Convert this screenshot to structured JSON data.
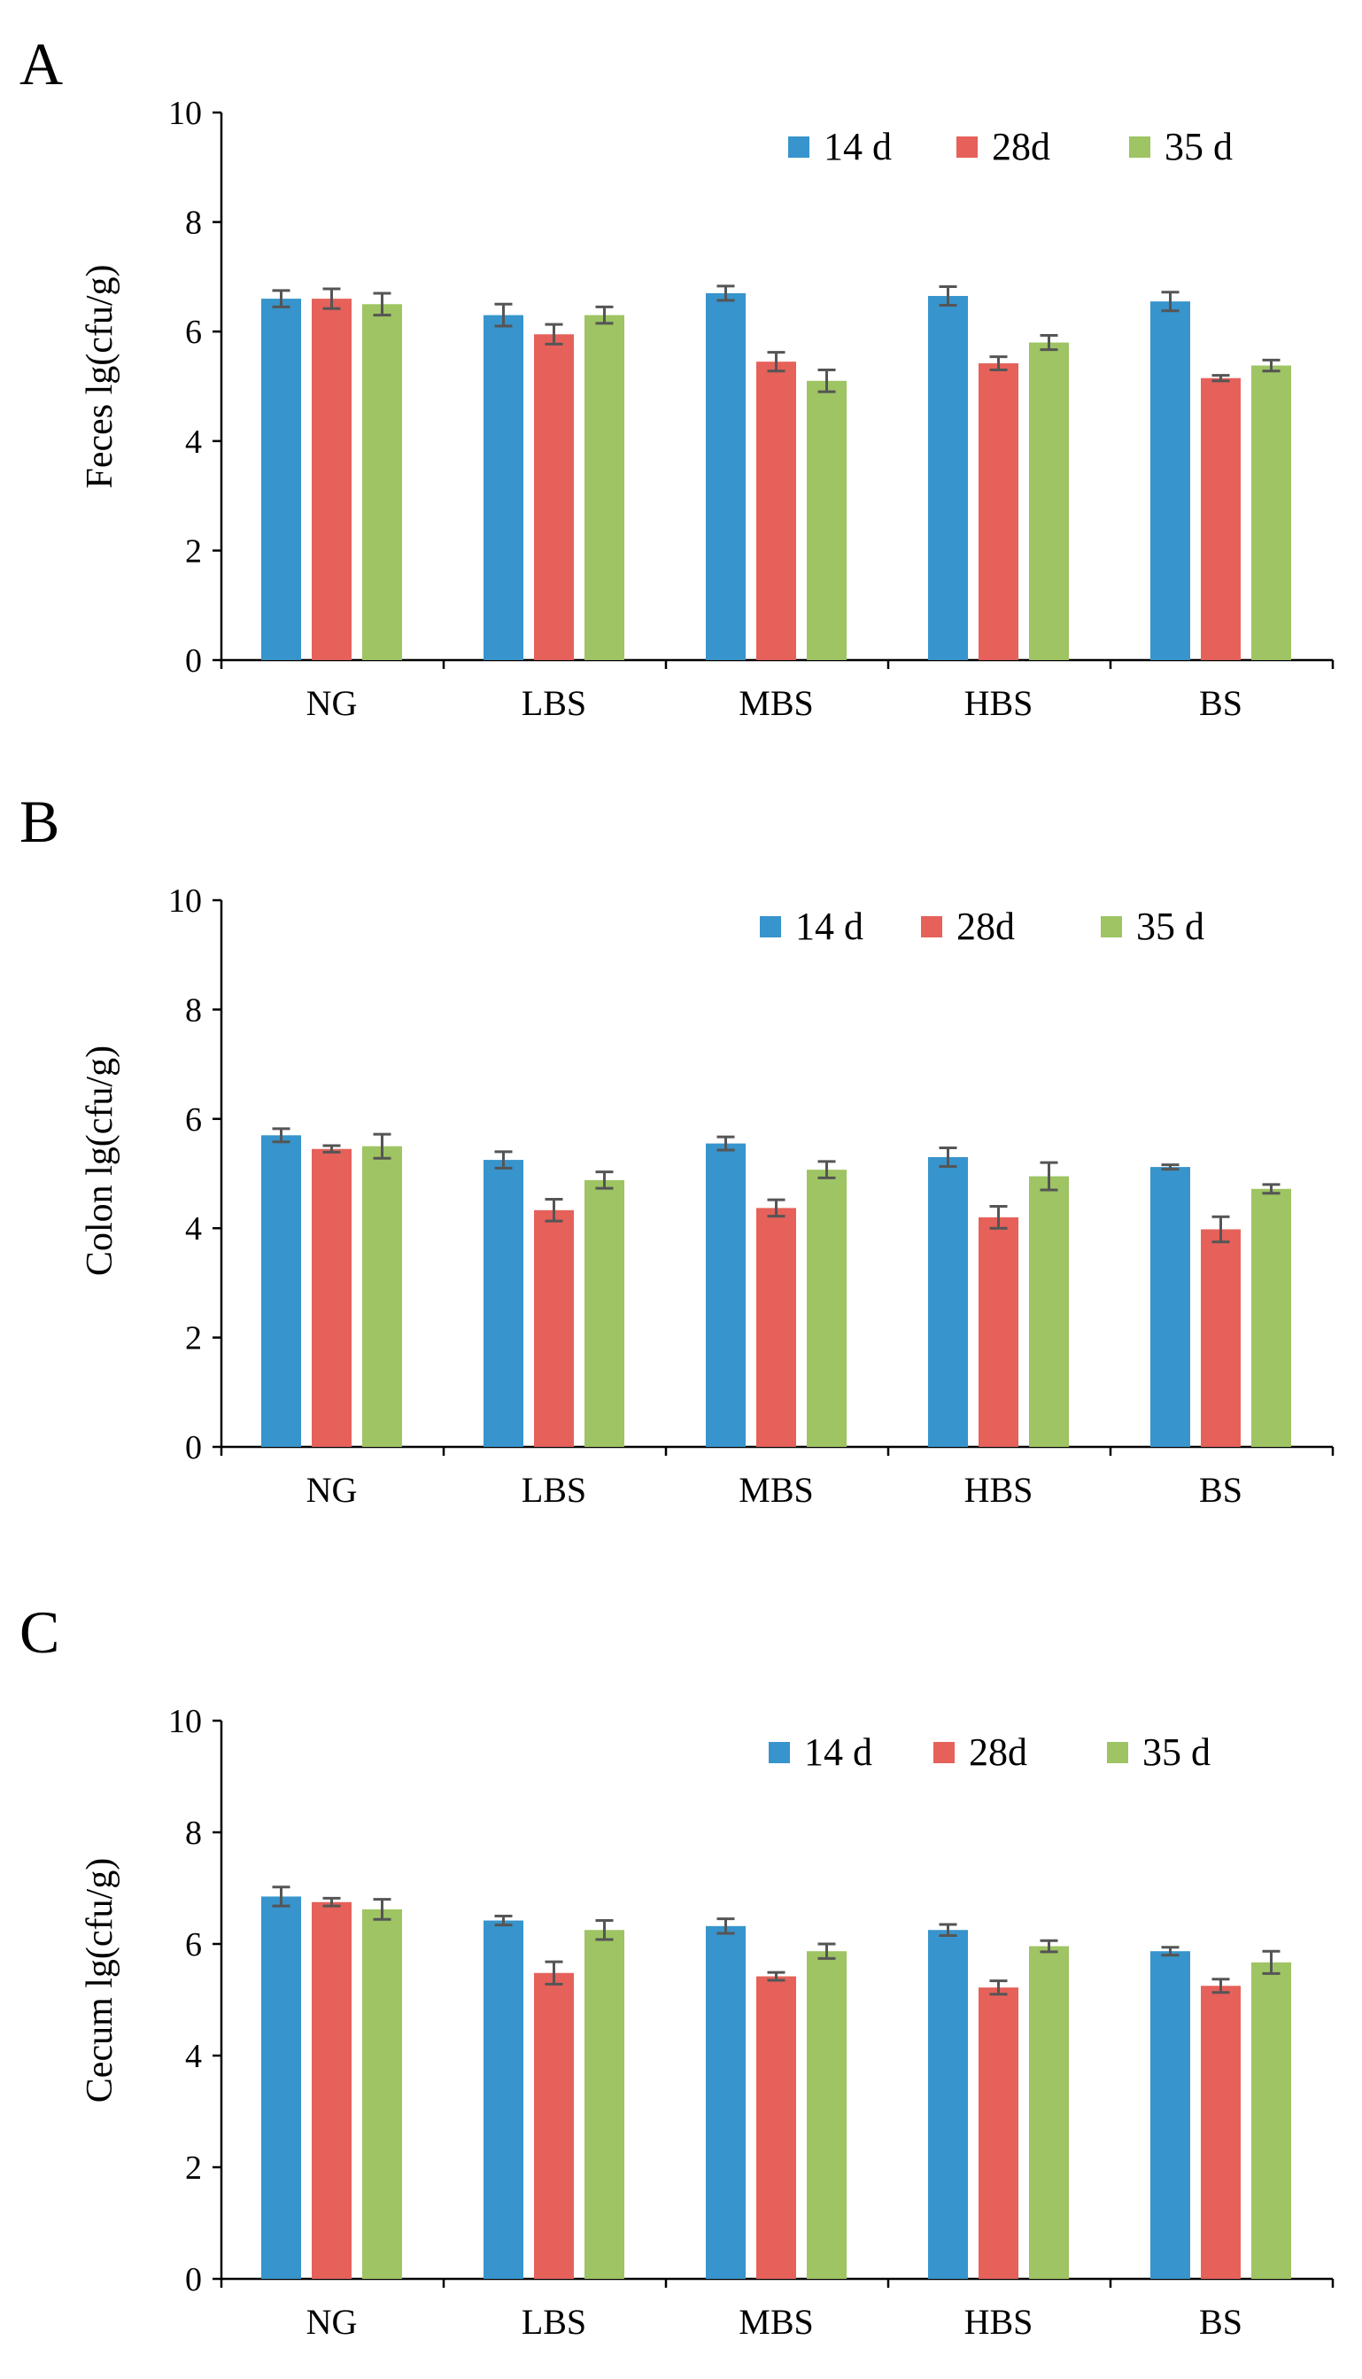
{
  "figure": {
    "panels": [
      "A",
      "B",
      "C"
    ]
  },
  "legend": [
    {
      "label": "14 d",
      "color": "#3794cc"
    },
    {
      "label": "28d",
      "color": "#e5615a"
    },
    {
      "label": "35 d",
      "color": "#9ec463"
    }
  ],
  "chart_data": [
    {
      "type": "bar",
      "panel": "A",
      "title": "",
      "xlabel": "",
      "ylabel": "Feces lg(cfu/g)",
      "ylim": [
        0,
        10
      ],
      "yticks": [
        "0",
        "2",
        "4",
        "6",
        "8",
        "10"
      ],
      "categories": [
        "NG",
        "LBS",
        "MBS",
        "HBS",
        "BS"
      ],
      "legend_position": "top-right",
      "series": [
        {
          "name": "14 d",
          "color": "#3794cc",
          "values": [
            6.6,
            6.3,
            6.7,
            6.65,
            6.55
          ],
          "errors": [
            0.15,
            0.2,
            0.13,
            0.17,
            0.17
          ]
        },
        {
          "name": "28d",
          "color": "#e5615a",
          "values": [
            6.6,
            5.95,
            5.45,
            5.42,
            5.15
          ],
          "errors": [
            0.18,
            0.18,
            0.17,
            0.12,
            0.05
          ]
        },
        {
          "name": "35 d",
          "color": "#9ec463",
          "values": [
            6.5,
            6.3,
            5.1,
            5.8,
            5.38
          ],
          "errors": [
            0.2,
            0.15,
            0.2,
            0.13,
            0.1
          ]
        }
      ]
    },
    {
      "type": "bar",
      "panel": "B",
      "title": "",
      "xlabel": "",
      "ylabel": "Colon lg(cfu/g)",
      "ylim": [
        0,
        10
      ],
      "yticks": [
        "0",
        "2",
        "4",
        "6",
        "8",
        "10"
      ],
      "categories": [
        "NG",
        "LBS",
        "MBS",
        "HBS",
        "BS"
      ],
      "legend_position": "top-right",
      "series": [
        {
          "name": "14 d",
          "color": "#3794cc",
          "values": [
            5.7,
            5.25,
            5.55,
            5.3,
            5.12
          ],
          "errors": [
            0.12,
            0.15,
            0.12,
            0.17,
            0.04
          ]
        },
        {
          "name": "28d",
          "color": "#e5615a",
          "values": [
            5.45,
            4.33,
            4.37,
            4.2,
            3.98
          ],
          "errors": [
            0.06,
            0.2,
            0.15,
            0.2,
            0.23
          ]
        },
        {
          "name": "35 d",
          "color": "#9ec463",
          "values": [
            5.5,
            4.88,
            5.07,
            4.95,
            4.72
          ],
          "errors": [
            0.22,
            0.15,
            0.15,
            0.25,
            0.08
          ]
        }
      ]
    },
    {
      "type": "bar",
      "panel": "C",
      "title": "",
      "xlabel": "",
      "ylabel": "Cecum lg(cfu/g)",
      "ylim": [
        0,
        10
      ],
      "yticks": [
        "0",
        "2",
        "4",
        "6",
        "8",
        "10"
      ],
      "categories": [
        "NG",
        "LBS",
        "MBS",
        "HBS",
        "BS"
      ],
      "legend_position": "top-right",
      "series": [
        {
          "name": "14 d",
          "color": "#3794cc",
          "values": [
            6.85,
            6.42,
            6.32,
            6.25,
            5.87
          ],
          "errors": [
            0.17,
            0.08,
            0.13,
            0.1,
            0.07
          ]
        },
        {
          "name": "28d",
          "color": "#e5615a",
          "values": [
            6.75,
            5.48,
            5.42,
            5.22,
            5.25
          ],
          "errors": [
            0.07,
            0.2,
            0.07,
            0.12,
            0.12
          ]
        },
        {
          "name": "35 d",
          "color": "#9ec463",
          "values": [
            6.62,
            6.25,
            5.87,
            5.96,
            5.67
          ],
          "errors": [
            0.18,
            0.17,
            0.13,
            0.1,
            0.2
          ]
        }
      ]
    }
  ]
}
